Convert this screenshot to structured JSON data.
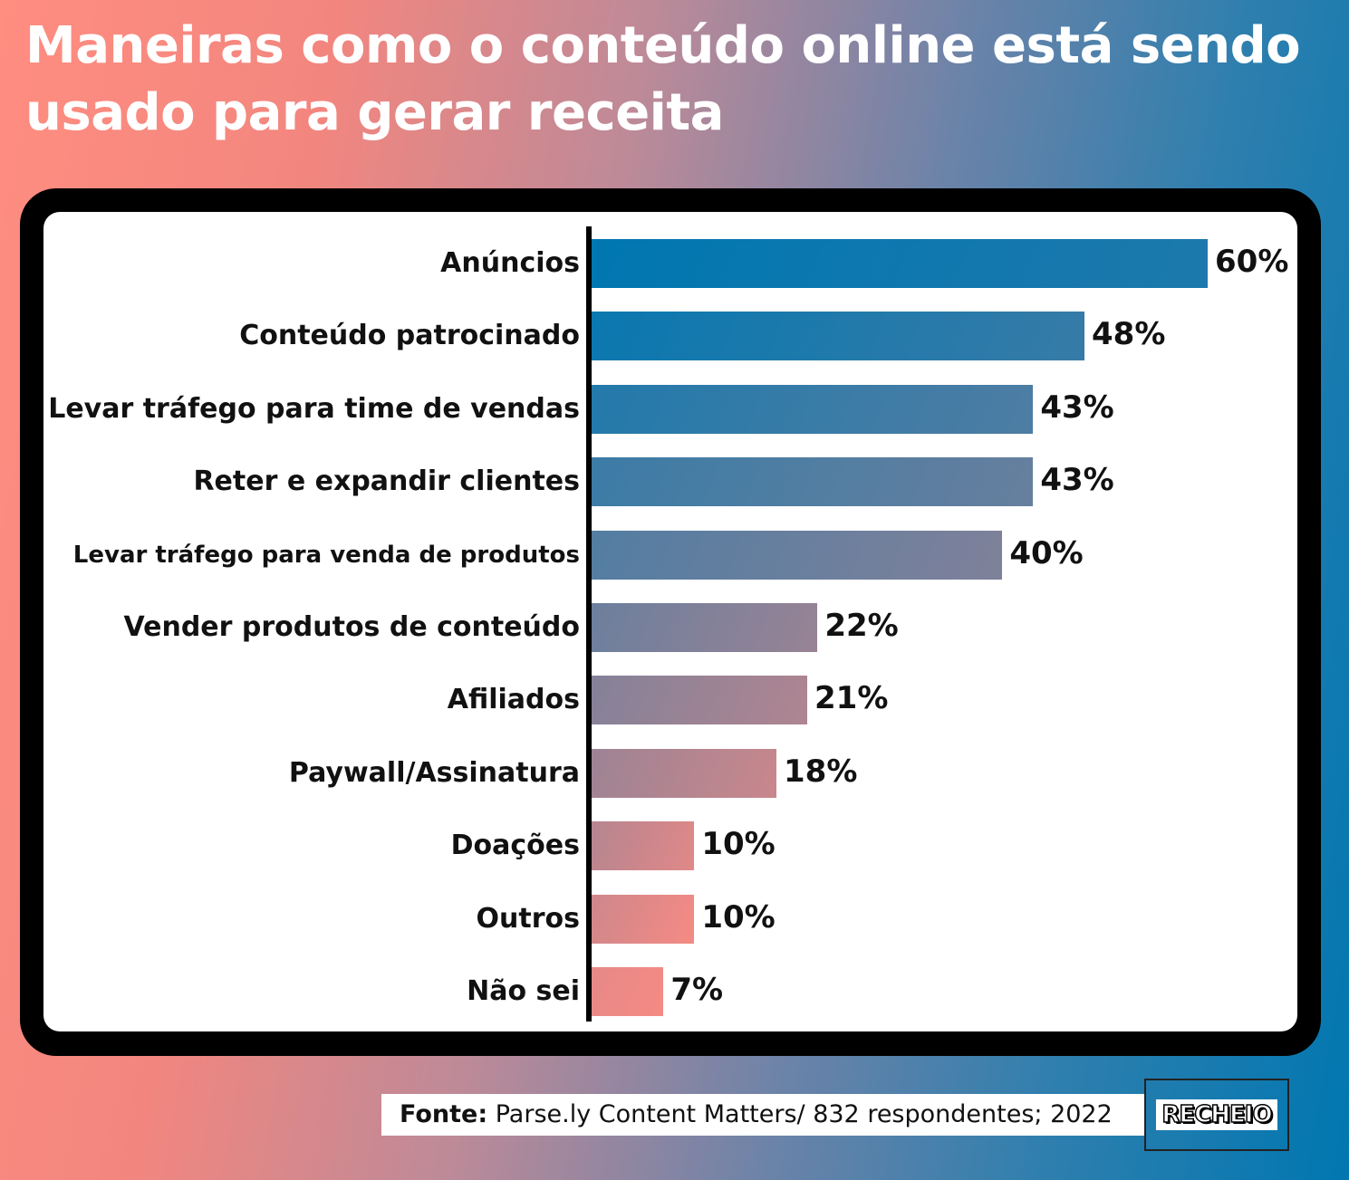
{
  "title": "Maneiras como o conteúdo online está sendo usado para gerar receita",
  "chart_data": {
    "type": "bar",
    "orientation": "horizontal",
    "categories": [
      "Anúncios",
      "Conteúdo patrocinado",
      "Levar tráfego para time de vendas",
      "Reter e expandir clientes",
      "Levar tráfego para venda de produtos",
      "Vender produtos de conteúdo",
      "Afiliados",
      "Paywall/Assinatura",
      "Doações",
      "Outros",
      "Não sei"
    ],
    "values": [
      60,
      48,
      43,
      43,
      40,
      22,
      21,
      18,
      10,
      10,
      7
    ],
    "value_labels": [
      "60%",
      "48%",
      "43%",
      "43%",
      "40%",
      "22%",
      "21%",
      "18%",
      "10%",
      "10%",
      "7%"
    ],
    "title": "Maneiras como o conteúdo online está sendo usado para gerar receita",
    "xlabel": "",
    "ylabel": "",
    "unit": "%",
    "grid": false,
    "bar_color_start": "#0077b1",
    "bar_color_end": "#f58a84"
  },
  "footer": {
    "source_label": "Fonte:",
    "source_text": " Parse.ly Content Matters/ 832 respondentes; 2022",
    "logo_text": "RECHEIO"
  }
}
